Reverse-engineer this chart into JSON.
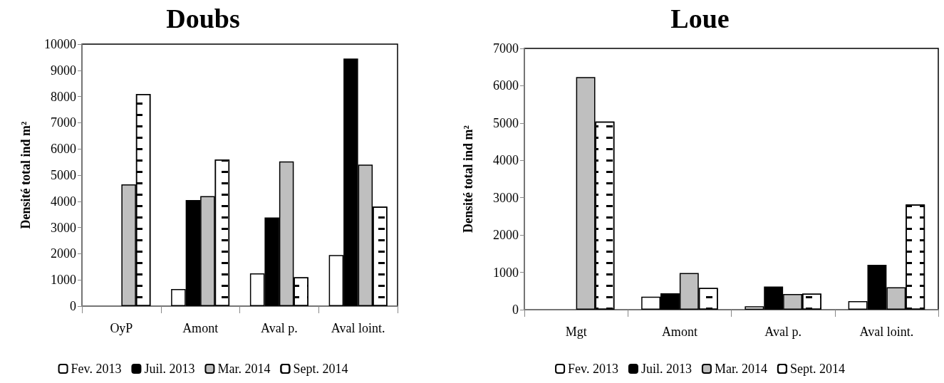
{
  "chart_data": [
    {
      "type": "bar",
      "title": "Doubs",
      "ylabel": "Densité total ind m²",
      "categories": [
        "OyP",
        "Amont",
        "Aval p.",
        "Aval loint."
      ],
      "ylim": [
        0,
        10000
      ],
      "yticks": [
        0,
        1000,
        2000,
        3000,
        4000,
        5000,
        6000,
        7000,
        8000,
        9000,
        10000
      ],
      "grid": false,
      "legend": "bottom",
      "series": [
        {
          "name": "Fev. 2013",
          "color": "#ffffff",
          "values": [
            null,
            650,
            1250,
            1950
          ]
        },
        {
          "name": "Juil. 2013",
          "color": "#000000",
          "values": [
            null,
            4050,
            3380,
            9450
          ]
        },
        {
          "name": "Mar. 2014",
          "color": "#bfbfbf",
          "values": [
            4650,
            4200,
            5520,
            5400
          ]
        },
        {
          "name": "Sept. 2014",
          "color": "#ffffff",
          "values": [
            8100,
            5600,
            1100,
            3800
          ]
        }
      ]
    },
    {
      "type": "bar",
      "title": "Loue",
      "ylabel": "Densité total ind m²",
      "categories": [
        "Mgt",
        "Amont",
        "Aval p.",
        "Aval loint."
      ],
      "ylim": [
        0,
        7000
      ],
      "yticks": [
        0,
        1000,
        2000,
        3000,
        4000,
        5000,
        6000,
        7000
      ],
      "grid": false,
      "legend": "bottom",
      "series": [
        {
          "name": "Fev. 2013",
          "color": "#ffffff",
          "values": [
            null,
            350,
            90,
            230
          ]
        },
        {
          "name": "Juil. 2013",
          "color": "#000000",
          "values": [
            null,
            440,
            620,
            1200
          ]
        },
        {
          "name": "Mar. 2014",
          "color": "#bfbfbf",
          "values": [
            6230,
            980,
            420,
            600
          ]
        },
        {
          "name": "Sept. 2014",
          "color": "#ffffff",
          "values": [
            5040,
            580,
            430,
            2820
          ]
        }
      ]
    }
  ]
}
